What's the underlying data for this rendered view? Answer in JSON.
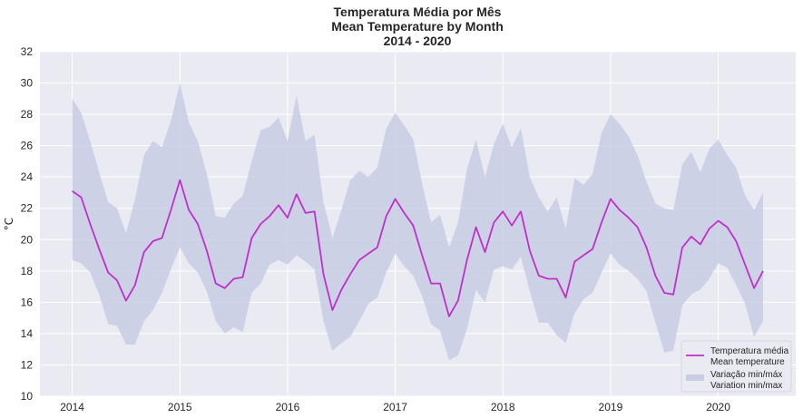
{
  "chart_data": {
    "type": "line",
    "title_lines": [
      "Temperatura Média por Mês",
      "Mean Temperature by Month",
      "2014 - 2020"
    ],
    "ylabel": "°C",
    "xlabel": "",
    "ylim": [
      10,
      32
    ],
    "xlim": [
      2013.7,
      2020.72
    ],
    "yticks": [
      10,
      12,
      14,
      16,
      18,
      20,
      22,
      24,
      26,
      28,
      30,
      32
    ],
    "xticks": [
      2014,
      2015,
      2016,
      2017,
      2018,
      2019,
      2020
    ],
    "grid": true,
    "background": "#eaeaf2",
    "line_color": "#c02fc9",
    "band_color": "#c8cde4",
    "legend_position": "lower-right",
    "legend": {
      "line_label": [
        "Temperatura média",
        "Mean temperature"
      ],
      "band_label": [
        "Variação min/máx",
        "Variation min/max"
      ]
    },
    "x": [
      "2014-01",
      "2014-02",
      "2014-03",
      "2014-04",
      "2014-05",
      "2014-06",
      "2014-07",
      "2014-08",
      "2014-09",
      "2014-10",
      "2014-11",
      "2014-12",
      "2015-01",
      "2015-02",
      "2015-03",
      "2015-04",
      "2015-05",
      "2015-06",
      "2015-07",
      "2015-08",
      "2015-09",
      "2015-10",
      "2015-11",
      "2015-12",
      "2016-01",
      "2016-02",
      "2016-03",
      "2016-04",
      "2016-05",
      "2016-06",
      "2016-07",
      "2016-08",
      "2016-09",
      "2016-10",
      "2016-11",
      "2016-12",
      "2017-01",
      "2017-02",
      "2017-03",
      "2017-04",
      "2017-05",
      "2017-06",
      "2017-07",
      "2017-08",
      "2017-09",
      "2017-10",
      "2017-11",
      "2017-12",
      "2018-01",
      "2018-02",
      "2018-03",
      "2018-04",
      "2018-05",
      "2018-06",
      "2018-07",
      "2018-08",
      "2018-09",
      "2018-10",
      "2018-11",
      "2018-12",
      "2019-01",
      "2019-02",
      "2019-03",
      "2019-04",
      "2019-05",
      "2019-06",
      "2019-07",
      "2019-08",
      "2019-09",
      "2019-10",
      "2019-11",
      "2019-12",
      "2020-01",
      "2020-02",
      "2020-03",
      "2020-04",
      "2020-05",
      "2020-06"
    ],
    "series": [
      {
        "name": "Temperatura média / Mean temperature",
        "values": [
          23.1,
          22.7,
          21.0,
          19.4,
          17.9,
          17.4,
          16.1,
          17.1,
          19.2,
          19.9,
          20.1,
          21.9,
          23.8,
          21.9,
          21.0,
          19.3,
          17.2,
          16.9,
          17.5,
          17.6,
          20.1,
          21.0,
          21.5,
          22.2,
          21.4,
          22.9,
          21.7,
          21.8,
          17.8,
          15.5,
          16.8,
          17.8,
          18.7,
          19.1,
          19.5,
          21.5,
          22.6,
          21.7,
          20.9,
          19.0,
          17.2,
          17.2,
          15.1,
          16.1,
          18.7,
          20.8,
          19.2,
          21.1,
          21.8,
          20.9,
          21.8,
          19.3,
          17.7,
          17.5,
          17.5,
          16.3,
          18.6,
          19.0,
          19.4,
          21.1,
          22.6,
          21.9,
          21.4,
          20.8,
          19.5,
          17.7,
          16.6,
          16.5,
          19.5,
          20.2,
          19.7,
          20.7,
          21.2,
          20.8,
          19.9,
          18.4,
          16.9,
          18.0
        ]
      },
      {
        "name": "Variação min/máx / Variation min/max — min",
        "values": [
          18.7,
          18.5,
          17.9,
          16.5,
          14.6,
          14.5,
          13.3,
          13.3,
          14.8,
          15.5,
          16.6,
          18.1,
          19.5,
          18.5,
          17.9,
          16.7,
          14.8,
          14.0,
          14.4,
          14.1,
          16.6,
          17.2,
          18.4,
          18.7,
          18.4,
          19.0,
          18.6,
          18.1,
          14.8,
          12.9,
          13.4,
          13.8,
          14.8,
          15.9,
          16.3,
          17.9,
          19.1,
          18.3,
          17.7,
          16.4,
          14.6,
          14.2,
          12.3,
          12.6,
          14.3,
          16.8,
          16.0,
          18.1,
          18.3,
          18.1,
          18.9,
          16.7,
          14.7,
          14.7,
          13.9,
          13.4,
          15.3,
          16.2,
          16.6,
          17.9,
          19.1,
          18.4,
          18.0,
          17.5,
          16.7,
          14.7,
          12.8,
          12.9,
          15.8,
          16.5,
          16.8,
          17.5,
          18.5,
          18.2,
          17.1,
          15.9,
          13.8,
          14.8
        ]
      },
      {
        "name": "Variação min/máx / Variation min/max — max",
        "values": [
          29.0,
          28.1,
          26.3,
          24.3,
          22.4,
          22.0,
          20.4,
          22.6,
          25.4,
          26.3,
          25.9,
          27.6,
          30.0,
          27.5,
          26.3,
          24.2,
          21.5,
          21.4,
          22.3,
          22.8,
          25.0,
          27.0,
          27.2,
          27.8,
          26.3,
          29.2,
          26.3,
          26.7,
          22.4,
          20.1,
          21.9,
          23.8,
          24.4,
          24.0,
          24.6,
          27.1,
          28.1,
          27.3,
          26.4,
          23.6,
          21.1,
          21.6,
          19.5,
          21.1,
          24.5,
          26.4,
          24.0,
          26.1,
          27.4,
          25.9,
          27.1,
          24.0,
          22.7,
          21.8,
          22.7,
          20.7,
          23.9,
          23.5,
          24.2,
          26.8,
          28.0,
          27.4,
          26.6,
          25.4,
          23.7,
          22.3,
          22.0,
          21.9,
          24.8,
          25.6,
          24.3,
          25.8,
          26.4,
          25.4,
          24.6,
          22.8,
          21.9,
          23.0
        ]
      }
    ]
  }
}
